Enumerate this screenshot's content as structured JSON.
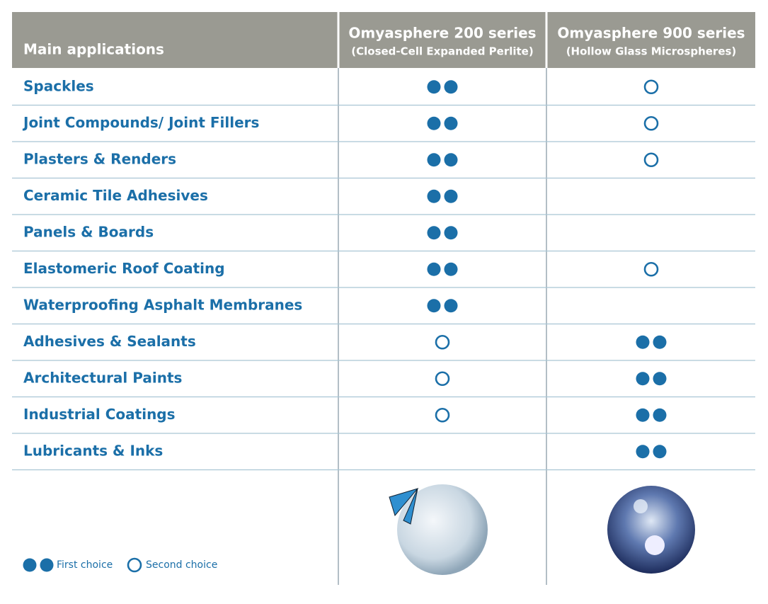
{
  "header": {
    "title": "Main applications",
    "columns": [
      {
        "title": "Omyasphere 200 series",
        "subtitle": "(Closed-Cell Expanded Perlite)"
      },
      {
        "title": "Omyasphere 900 series",
        "subtitle": "(Hollow Glass Microspheres)"
      }
    ]
  },
  "legend": [
    {
      "label": "First choice"
    },
    {
      "label": "Second choice"
    }
  ],
  "table": {
    "rows": [
      [
        "Spackles",
        0,
        1
      ],
      [
        "Joint Compounds/ Joint Fillers",
        0,
        1
      ],
      [
        "Plasters & Renders",
        0,
        1
      ],
      [
        "Ceramic Tile Adhesives",
        0,
        null
      ],
      [
        "Panels & Boards",
        0,
        null
      ],
      [
        "Elastomeric Roof Coating",
        0,
        1
      ],
      [
        "Waterproofing Asphalt Membranes",
        0,
        null
      ],
      [
        "Adhesives  & Sealants",
        1,
        0
      ],
      [
        "Architectural Paints",
        1,
        0
      ],
      [
        "Industrial Coatings",
        1,
        0
      ],
      [
        "Lubricants & Inks",
        null,
        0
      ]
    ]
  }
}
